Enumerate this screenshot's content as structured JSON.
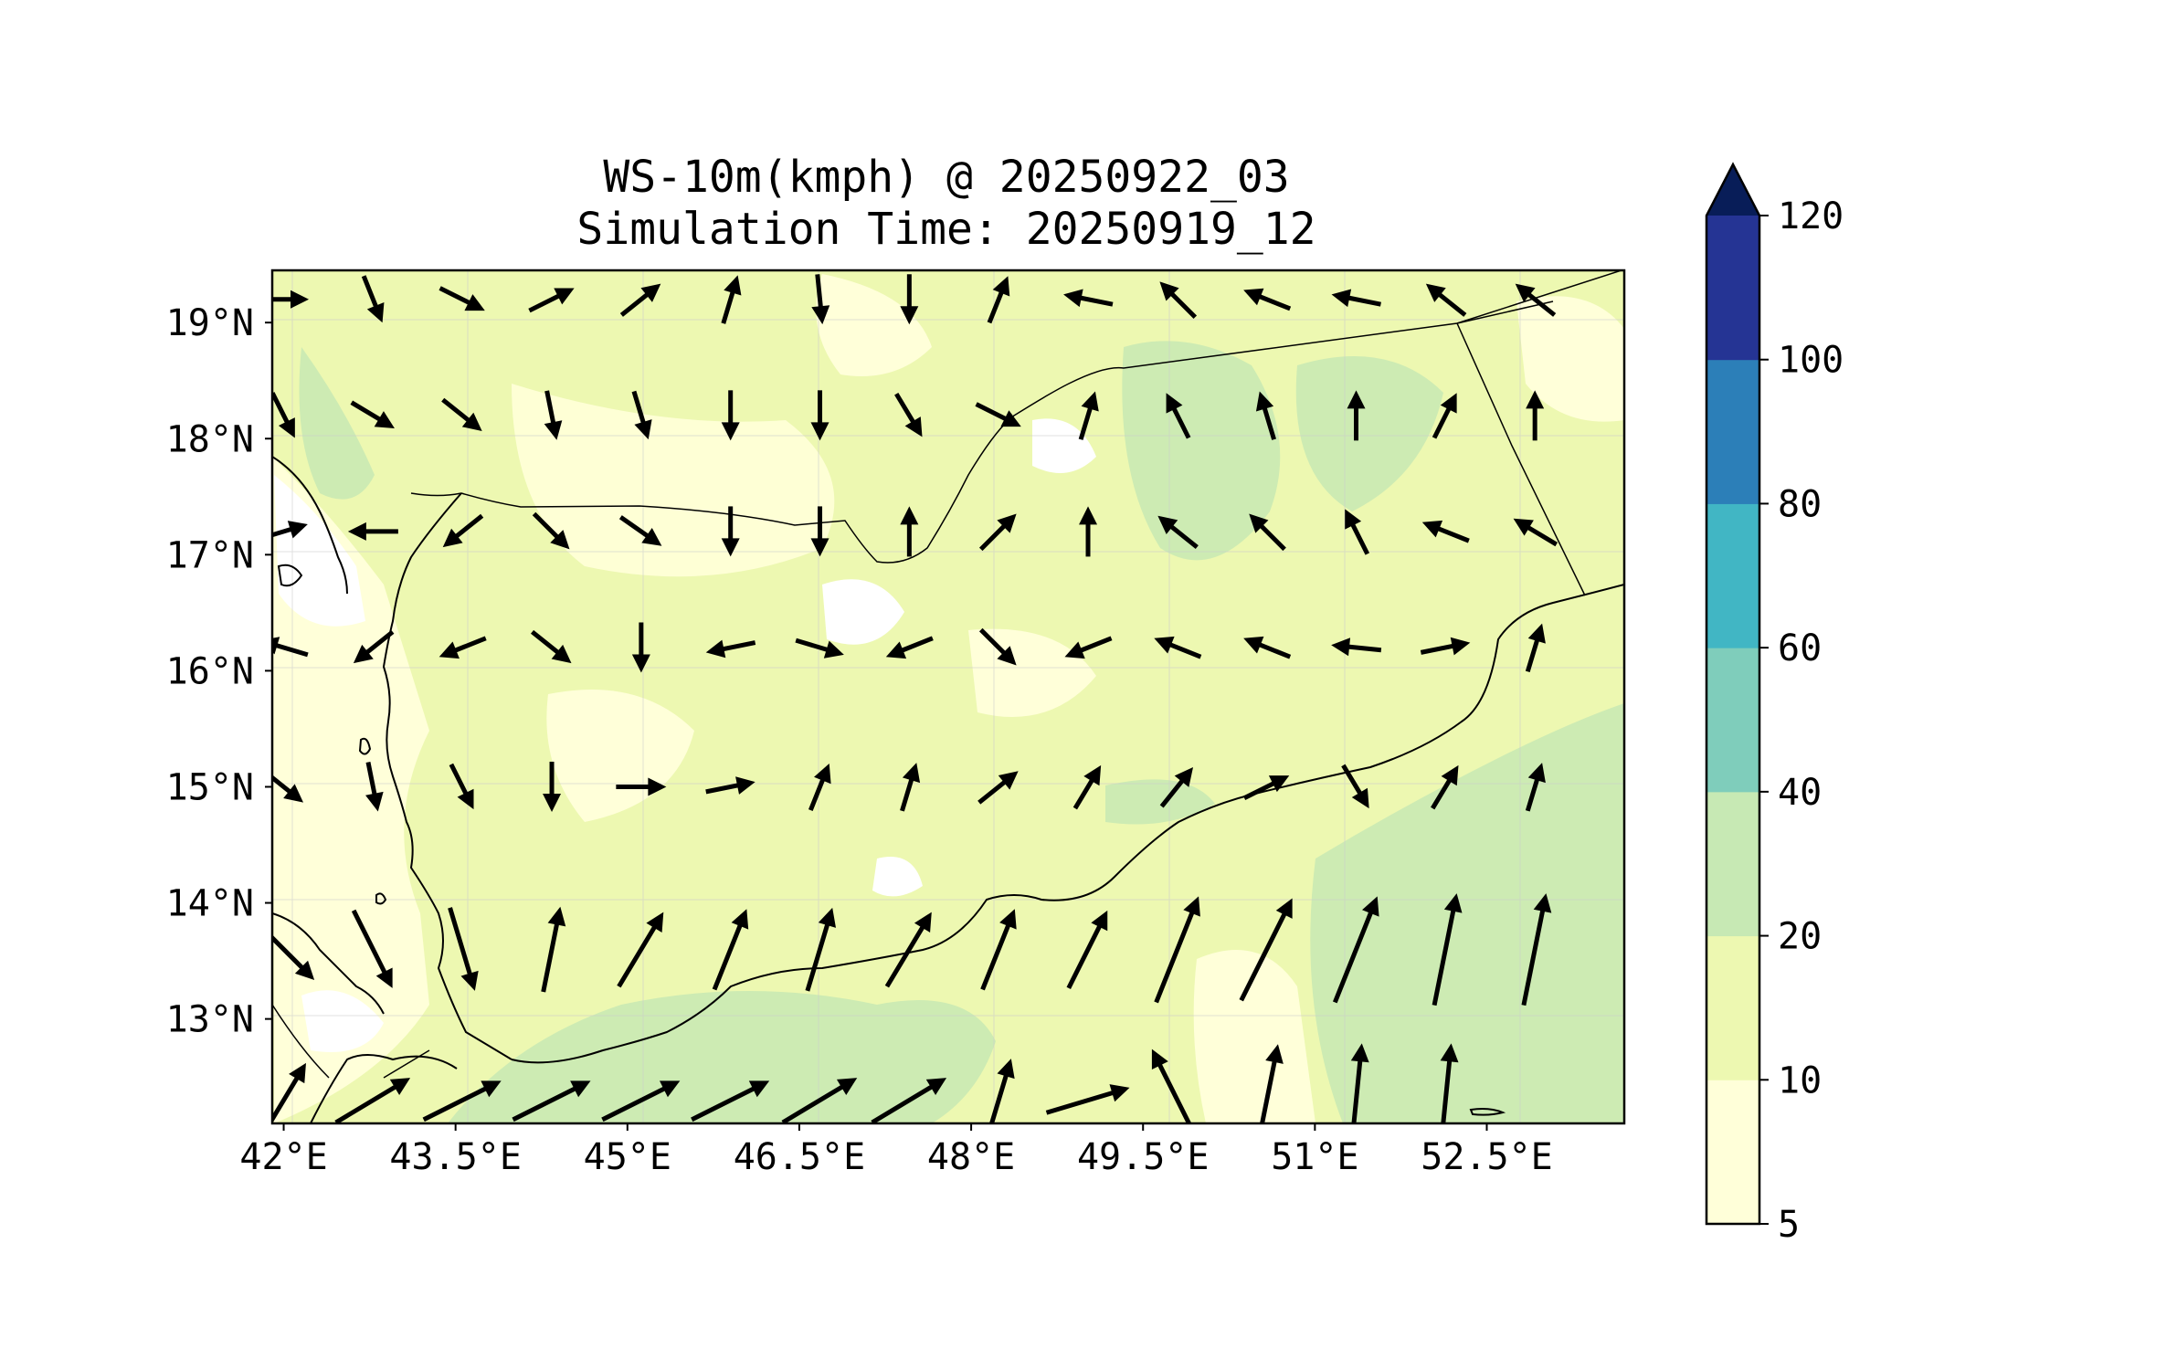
{
  "figure": {
    "title_line1": "WS-10m(kmph) @ 20250922_03",
    "title_line2": "Simulation Time: 20250919_12"
  },
  "map": {
    "region": "Yemen / Gulf of Aden",
    "lon_range": [
      41.9,
      53.7
    ],
    "lat_range": [
      12.1,
      19.45
    ],
    "x_tick_labels": [
      {
        "lon": 42.0,
        "label": "42°E"
      },
      {
        "lon": 43.5,
        "label": "43.5°E"
      },
      {
        "lon": 45.0,
        "label": "45°E"
      },
      {
        "lon": 46.5,
        "label": "46.5°E"
      },
      {
        "lon": 48.0,
        "label": "48°E"
      },
      {
        "lon": 49.5,
        "label": "49.5°E"
      },
      {
        "lon": 51.0,
        "label": "51°E"
      },
      {
        "lon": 52.5,
        "label": "52.5°E"
      }
    ],
    "y_tick_labels": [
      {
        "lat": 19,
        "label": "19°N"
      },
      {
        "lat": 18,
        "label": "18°N"
      },
      {
        "lat": 17,
        "label": "17°N"
      },
      {
        "lat": 16,
        "label": "16°N"
      },
      {
        "lat": 15,
        "label": "15°N"
      },
      {
        "lat": 14,
        "label": "14°N"
      },
      {
        "lat": 13,
        "label": "13°N"
      }
    ]
  },
  "colorbar": {
    "levels": [
      5,
      10,
      20,
      40,
      60,
      80,
      100,
      120
    ],
    "tick_labels": [
      "5",
      "10",
      "20",
      "40",
      "60",
      "80",
      "100",
      "120"
    ],
    "colors": [
      "#ffffd9",
      "#edf8b1",
      "#c7e9b4",
      "#7fcdbb",
      "#41b6c4",
      "#2c7fb8",
      "#253494"
    ],
    "extend_color": "#081d58"
  },
  "colors": {
    "land_base": "#edf8b1",
    "light_zone": "#ffffd9",
    "strong_zone": "#cdebb3",
    "white_patch": "#ffffff",
    "arrow": "#000000"
  },
  "chart_data": {
    "type": "map-vector-field",
    "variable": "10 m wind speed (kmph)",
    "arrow_rows": [
      {
        "lat": 19.2,
        "u_v": [
          [
            1,
            0
          ],
          [
            0.4,
            -1
          ],
          [
            1,
            -0.5
          ],
          [
            1,
            0.5
          ],
          [
            1,
            0.8
          ],
          [
            0.3,
            1
          ],
          [
            0.1,
            -1
          ],
          [
            0,
            -1
          ],
          [
            0.4,
            1
          ],
          [
            -1,
            0.2
          ],
          [
            -1,
            1
          ],
          [
            -1,
            0.4
          ],
          [
            -1,
            0.2
          ],
          [
            -1,
            0.8
          ],
          [
            -1,
            0.8
          ]
        ]
      },
      {
        "lat": 18.2,
        "u_v": [
          [
            0.5,
            -1
          ],
          [
            1,
            -0.6
          ],
          [
            1,
            -0.8
          ],
          [
            0.2,
            -1
          ],
          [
            0.3,
            -1
          ],
          [
            0,
            -1
          ],
          [
            0,
            -1
          ],
          [
            0.6,
            -1
          ],
          [
            1,
            -0.5
          ],
          [
            0.3,
            1
          ],
          [
            -0.5,
            1
          ],
          [
            -0.3,
            1
          ],
          [
            0,
            1
          ],
          [
            0.5,
            1
          ],
          [
            0,
            1
          ]
        ]
      },
      {
        "lat": 17.2,
        "u_v": [
          [
            1,
            0.3
          ],
          [
            -1,
            0
          ],
          [
            -1,
            -0.8
          ],
          [
            1,
            -1
          ],
          [
            1,
            -0.7
          ],
          [
            0,
            -1
          ],
          [
            0,
            -1
          ],
          [
            0,
            1
          ],
          [
            1,
            1
          ],
          [
            0,
            1
          ],
          [
            -1,
            0.8
          ],
          [
            -1,
            1
          ],
          [
            -0.5,
            1
          ],
          [
            -1,
            0.4
          ],
          [
            -1,
            0.6
          ]
        ]
      },
      {
        "lat": 16.2,
        "u_v": [
          [
            -1,
            0.3
          ],
          [
            -1,
            -0.8
          ],
          [
            -1,
            -0.4
          ],
          [
            1,
            -0.8
          ],
          [
            0,
            -1
          ],
          [
            -1,
            -0.2
          ],
          [
            1,
            -0.3
          ],
          [
            -1,
            -0.4
          ],
          [
            1,
            -1
          ],
          [
            -1,
            -0.4
          ],
          [
            -1,
            0.4
          ],
          [
            -1,
            0.4
          ],
          [
            -1,
            0.1
          ],
          [
            1,
            0.2
          ],
          [
            0.3,
            1
          ]
        ]
      },
      {
        "lat": 15.0,
        "u_v": [
          [
            1,
            -0.8
          ],
          [
            0.2,
            -1
          ],
          [
            0.5,
            -1
          ],
          [
            0,
            -1
          ],
          [
            1,
            0
          ],
          [
            1,
            0.2
          ],
          [
            0.4,
            1
          ],
          [
            0.3,
            1
          ],
          [
            1,
            0.8
          ],
          [
            0.6,
            1
          ],
          [
            0.8,
            1
          ],
          [
            1,
            0.5
          ],
          [
            0.6,
            -1
          ],
          [
            0.6,
            1
          ],
          [
            0.3,
            1
          ]
        ]
      },
      {
        "lat": 13.6,
        "u_v": [
          [
            1,
            -1
          ],
          [
            0.5,
            -1
          ],
          [
            0.3,
            -1
          ],
          [
            0.2,
            1
          ],
          [
            0.6,
            1
          ],
          [
            0.4,
            1
          ],
          [
            0.3,
            1
          ],
          [
            0.6,
            1
          ],
          [
            0.4,
            1
          ],
          [
            0.5,
            1
          ],
          [
            0.4,
            1
          ],
          [
            0.5,
            1
          ],
          [
            0.4,
            1
          ],
          [
            0.2,
            1
          ],
          [
            0.2,
            1
          ]
        ]
      },
      {
        "lat": 12.3,
        "u_v": [
          [
            0.6,
            1
          ],
          [
            1,
            0.6
          ],
          [
            1,
            0.5
          ],
          [
            1,
            0.5
          ],
          [
            1,
            0.5
          ],
          [
            1,
            0.5
          ],
          [
            1,
            0.6
          ],
          [
            1,
            0.6
          ],
          [
            0.3,
            1
          ],
          [
            1,
            0.3
          ],
          [
            -0.5,
            1
          ],
          [
            0.2,
            1
          ],
          [
            0.1,
            1
          ],
          [
            0.1,
            1
          ]
        ]
      }
    ]
  }
}
